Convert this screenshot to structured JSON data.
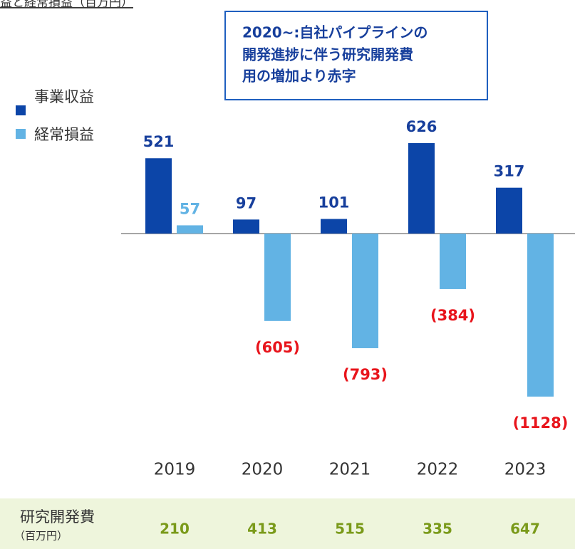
{
  "chart_data": {
    "type": "bar",
    "title": "益と経常損益（百万円）",
    "annotation_lines": [
      "2020~:自社パイプラインの",
      "開発進捗に伴う研究開発費",
      "用の増加より赤字"
    ],
    "categories": [
      "2019",
      "2020",
      "2021",
      "2022",
      "2023"
    ],
    "series": [
      {
        "name": "事業収益",
        "color": "#0c45a8",
        "values": [
          521,
          97,
          101,
          626,
          317
        ]
      },
      {
        "name": "経常損益",
        "color": "#62b3e4",
        "values": [
          57,
          -605,
          -793,
          -384,
          -1128
        ],
        "value_labels": [
          "57",
          "(605)",
          "(793)",
          "(384)",
          "(1128)"
        ]
      }
    ],
    "rd_table": {
      "label": "研究開発費",
      "unit": "（百万円）",
      "values": [
        210,
        413,
        515,
        335,
        647
      ]
    }
  }
}
